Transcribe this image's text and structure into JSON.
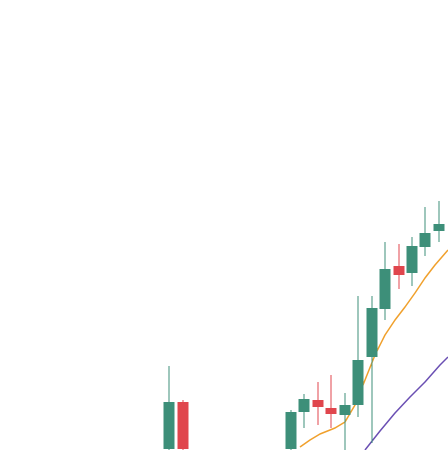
{
  "chart_data": {
    "type": "candlestick",
    "grid": false,
    "legend": "none",
    "ylim": [
      0,
      450
    ],
    "colors": {
      "up": "#3d8f79",
      "down": "#e0464d",
      "fast_ma": "#f0a02c",
      "slow_ma": "#6a4fb3"
    },
    "candles": [
      {
        "x": 169,
        "open": 1,
        "high": 84,
        "low": 0,
        "close": 48
      },
      {
        "x": 183,
        "open": 48,
        "high": 50,
        "low": 0,
        "close": 1
      },
      {
        "x": 291,
        "open": 1,
        "high": 40,
        "low": 0,
        "close": 38
      },
      {
        "x": 304,
        "open": 38,
        "high": 56,
        "low": 22,
        "close": 51
      },
      {
        "x": 318,
        "open": 50,
        "high": 68,
        "low": 25,
        "close": 43
      },
      {
        "x": 331,
        "open": 42,
        "high": 75,
        "low": 22,
        "close": 36
      },
      {
        "x": 345,
        "open": 35,
        "high": 57,
        "low": 0,
        "close": 45
      },
      {
        "x": 358,
        "open": 45,
        "high": 154,
        "low": 33,
        "close": 90
      },
      {
        "x": 372,
        "open": 93,
        "high": 154,
        "low": 7,
        "close": 142
      },
      {
        "x": 385,
        "open": 141,
        "high": 208,
        "low": 130,
        "close": 181
      },
      {
        "x": 399,
        "open": 184,
        "high": 206,
        "low": 161,
        "close": 175
      },
      {
        "x": 412,
        "open": 177,
        "high": 213,
        "low": 164,
        "close": 204
      },
      {
        "x": 425,
        "open": 203,
        "high": 243,
        "low": 194,
        "close": 217
      },
      {
        "x": 439,
        "open": 219,
        "high": 249,
        "low": 208,
        "close": 226
      }
    ],
    "fast_ma": {
      "x": [
        300,
        310,
        320,
        335,
        345,
        355,
        365,
        375,
        385,
        395,
        405,
        415,
        425,
        435,
        448
      ],
      "y": [
        3,
        10,
        16,
        22,
        28,
        45,
        70,
        95,
        115,
        130,
        143,
        157,
        172,
        185,
        200
      ]
    },
    "slow_ma": {
      "x": [
        365,
        380,
        395,
        410,
        425,
        440,
        448
      ],
      "y": [
        0,
        19,
        37,
        53,
        68,
        85,
        93
      ]
    }
  }
}
